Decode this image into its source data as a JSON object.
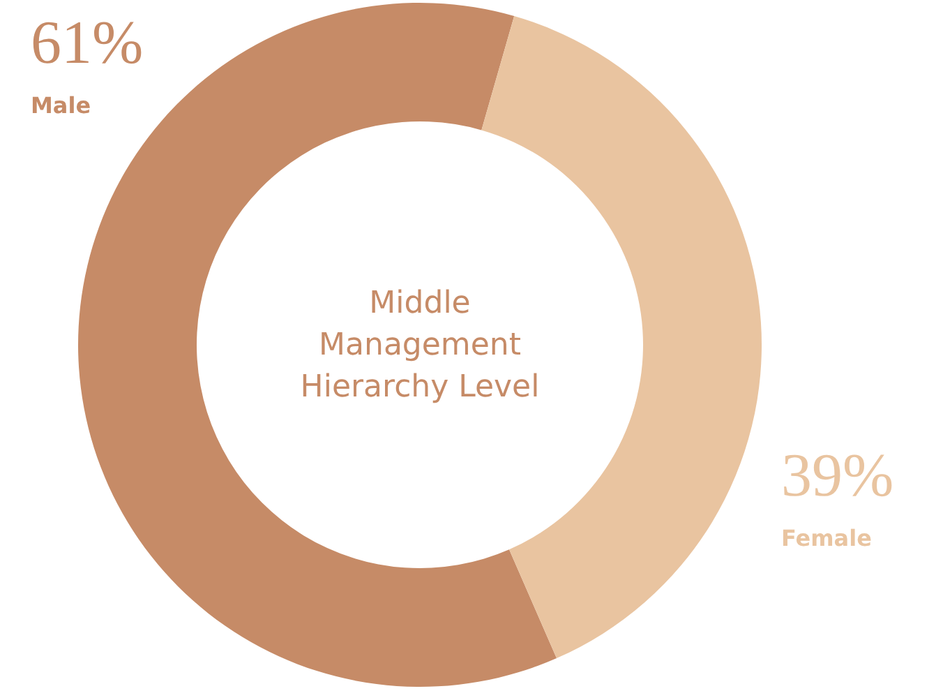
{
  "chart_data": {
    "type": "donut",
    "title": "Middle Management Hierarchy Level",
    "categories": [
      "Male",
      "Female"
    ],
    "values": [
      61,
      39
    ],
    "colors": [
      "#c68b67",
      "#e9c4a0"
    ],
    "value_labels": [
      "61%",
      "39%"
    ]
  }
}
